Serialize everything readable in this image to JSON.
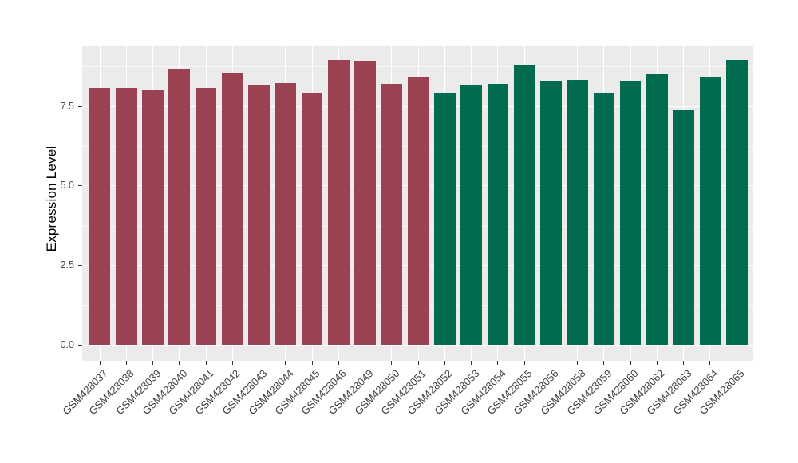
{
  "figure": {
    "background_color": "#FFFFFF",
    "panel_background_color": "#EBEBEB",
    "gridline_color": "#FFFFFF",
    "axis_text_color": "#4D4D4D",
    "axis_title_color": "#000000",
    "tick_mark_color": "#333333",
    "group1_bar_color": "#9A4152",
    "group2_bar_color": "#006B4E"
  },
  "chart_data": {
    "type": "bar",
    "title": "",
    "xlabel": "",
    "ylabel": "Expression Level",
    "ylim": [
      0,
      9.42
    ],
    "yticks": [
      0.0,
      2.5,
      5.0,
      7.5
    ],
    "ytick_labels": [
      "0.0",
      "2.5",
      "5.0",
      "7.5"
    ],
    "minor_yticks": [
      1.25,
      3.75,
      6.25,
      8.75
    ],
    "grid": true,
    "legend_position": "none",
    "x_label_angle": 45,
    "categories": [
      "GSM428037",
      "GSM428038",
      "GSM428039",
      "GSM428040",
      "GSM428041",
      "GSM428042",
      "GSM428043",
      "GSM428044",
      "GSM428045",
      "GSM428046",
      "GSM428049",
      "GSM428050",
      "GSM428051",
      "GSM428052",
      "GSM428053",
      "GSM428054",
      "GSM428055",
      "GSM428056",
      "GSM428058",
      "GSM428059",
      "GSM428060",
      "GSM428062",
      "GSM428063",
      "GSM428064",
      "GSM428065"
    ],
    "values": [
      8.09,
      8.09,
      8.01,
      8.66,
      8.07,
      8.55,
      8.19,
      8.24,
      7.94,
      8.97,
      8.91,
      8.22,
      8.43,
      7.9,
      8.17,
      8.21,
      8.79,
      8.29,
      8.34,
      7.93,
      8.3,
      8.5,
      7.37,
      8.42,
      8.96
    ],
    "bar_colors": [
      "#9A4152",
      "#9A4152",
      "#9A4152",
      "#9A4152",
      "#9A4152",
      "#9A4152",
      "#9A4152",
      "#9A4152",
      "#9A4152",
      "#9A4152",
      "#9A4152",
      "#9A4152",
      "#9A4152",
      "#006B4E",
      "#006B4E",
      "#006B4E",
      "#006B4E",
      "#006B4E",
      "#006B4E",
      "#006B4E",
      "#006B4E",
      "#006B4E",
      "#006B4E",
      "#006B4E",
      "#006B4E"
    ]
  }
}
